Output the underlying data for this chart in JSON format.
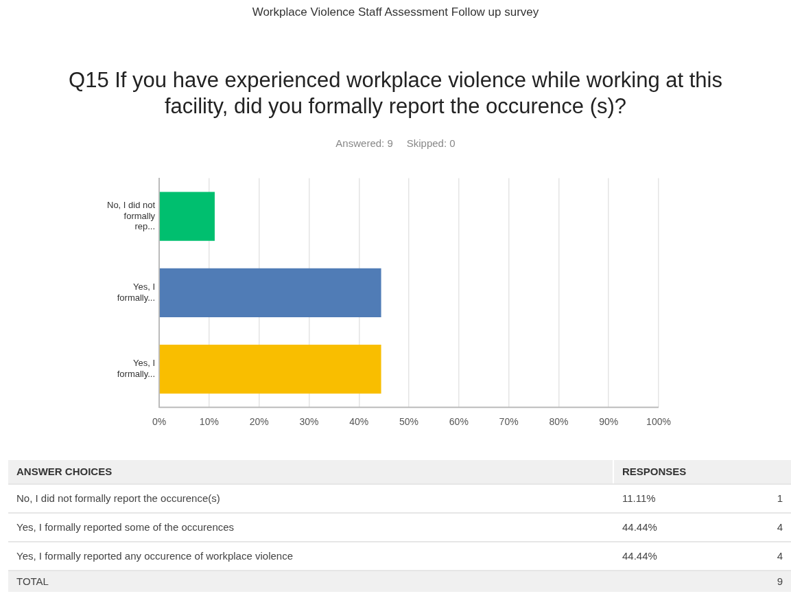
{
  "chart_data": {
    "type": "bar",
    "orientation": "horizontal",
    "title": "Workplace Violence Staff Assessment Follow up survey",
    "subtitle": "Q15 If you have experienced workplace violence while working at this facility, did you formally report the occurence (s)?",
    "categories": [
      "No, I did not formally rep...",
      "Yes, I formally...",
      "Yes, I formally..."
    ],
    "values": [
      11.11,
      44.44,
      44.44
    ],
    "colors": [
      "#00bf6f",
      "#507cb6",
      "#f9be00"
    ],
    "xlim": [
      0,
      100
    ],
    "xticks": [
      {
        "value": 0,
        "label": "0%"
      },
      {
        "value": 10,
        "label": "10%"
      },
      {
        "value": 20,
        "label": "20%"
      },
      {
        "value": 30,
        "label": "30%"
      },
      {
        "value": 40,
        "label": "40%"
      },
      {
        "value": 50,
        "label": "50%"
      },
      {
        "value": 60,
        "label": "60%"
      },
      {
        "value": 70,
        "label": "70%"
      },
      {
        "value": 80,
        "label": "80%"
      },
      {
        "value": 90,
        "label": "90%"
      },
      {
        "value": 100,
        "label": "100%"
      }
    ],
    "grid": "x",
    "legend": false,
    "annotations": [
      "Answered: 9",
      "Skipped: 0",
      "ANSWER CHOICES",
      "RESPONSES",
      "No, I did not formally report the occurence(s)",
      "11.11%",
      "1",
      "Yes, I formally reported some of the occurences",
      "44.44%",
      "4",
      "Yes, I formally reported any occurence of workplace violence",
      "44.44%",
      "4",
      "TOTAL",
      "9"
    ]
  }
}
